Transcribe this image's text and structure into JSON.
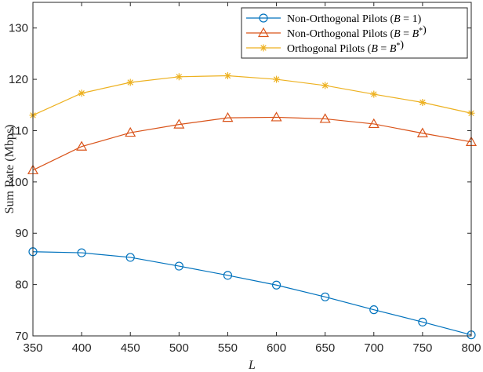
{
  "chart_data": {
    "type": "line",
    "xlabel": "L",
    "ylabel": "Sum Rate (Mbps)",
    "xlim": [
      350,
      800
    ],
    "ylim": [
      70,
      135
    ],
    "x": [
      350,
      400,
      450,
      500,
      550,
      600,
      650,
      700,
      750,
      800
    ],
    "xticks": [
      "350",
      "400",
      "450",
      "500",
      "550",
      "600",
      "650",
      "700",
      "750",
      "800"
    ],
    "yticks": [
      "70",
      "80",
      "90",
      "100",
      "110",
      "120",
      "130"
    ],
    "grid": false,
    "legend_position": "top-right",
    "series": [
      {
        "name": "Non-Orthogonal Pilots (B = 1)",
        "name_main": "Non-Orthogonal Pilots (",
        "name_var": "B",
        "name_rest": " = 1)",
        "color": "#0072BD",
        "marker": "circle",
        "values": [
          86.4,
          86.2,
          85.3,
          83.6,
          81.8,
          79.9,
          77.6,
          75.1,
          72.7,
          70.2
        ]
      },
      {
        "name": "Non-Orthogonal Pilots (B = B*)",
        "name_main": "Non-Orthogonal Pilots (",
        "name_var": "B",
        "name_rest": " = ",
        "name_var2": "B",
        "name_sup": "*",
        "name_end": ")",
        "color": "#D95319",
        "marker": "triangle",
        "values": [
          102.3,
          106.9,
          109.6,
          111.2,
          112.5,
          112.6,
          112.3,
          111.3,
          109.5,
          107.8
        ]
      },
      {
        "name": "Orthogonal Pilots (B = B*)",
        "name_main": "Orthogonal Pilots (",
        "name_var": "B",
        "name_rest": " = ",
        "name_var2": "B",
        "name_sup": "*",
        "name_end": ")",
        "color": "#EDB120",
        "marker": "asterisk",
        "values": [
          113.0,
          117.3,
          119.4,
          120.5,
          120.7,
          120.0,
          118.8,
          117.1,
          115.5,
          113.4
        ]
      }
    ]
  }
}
